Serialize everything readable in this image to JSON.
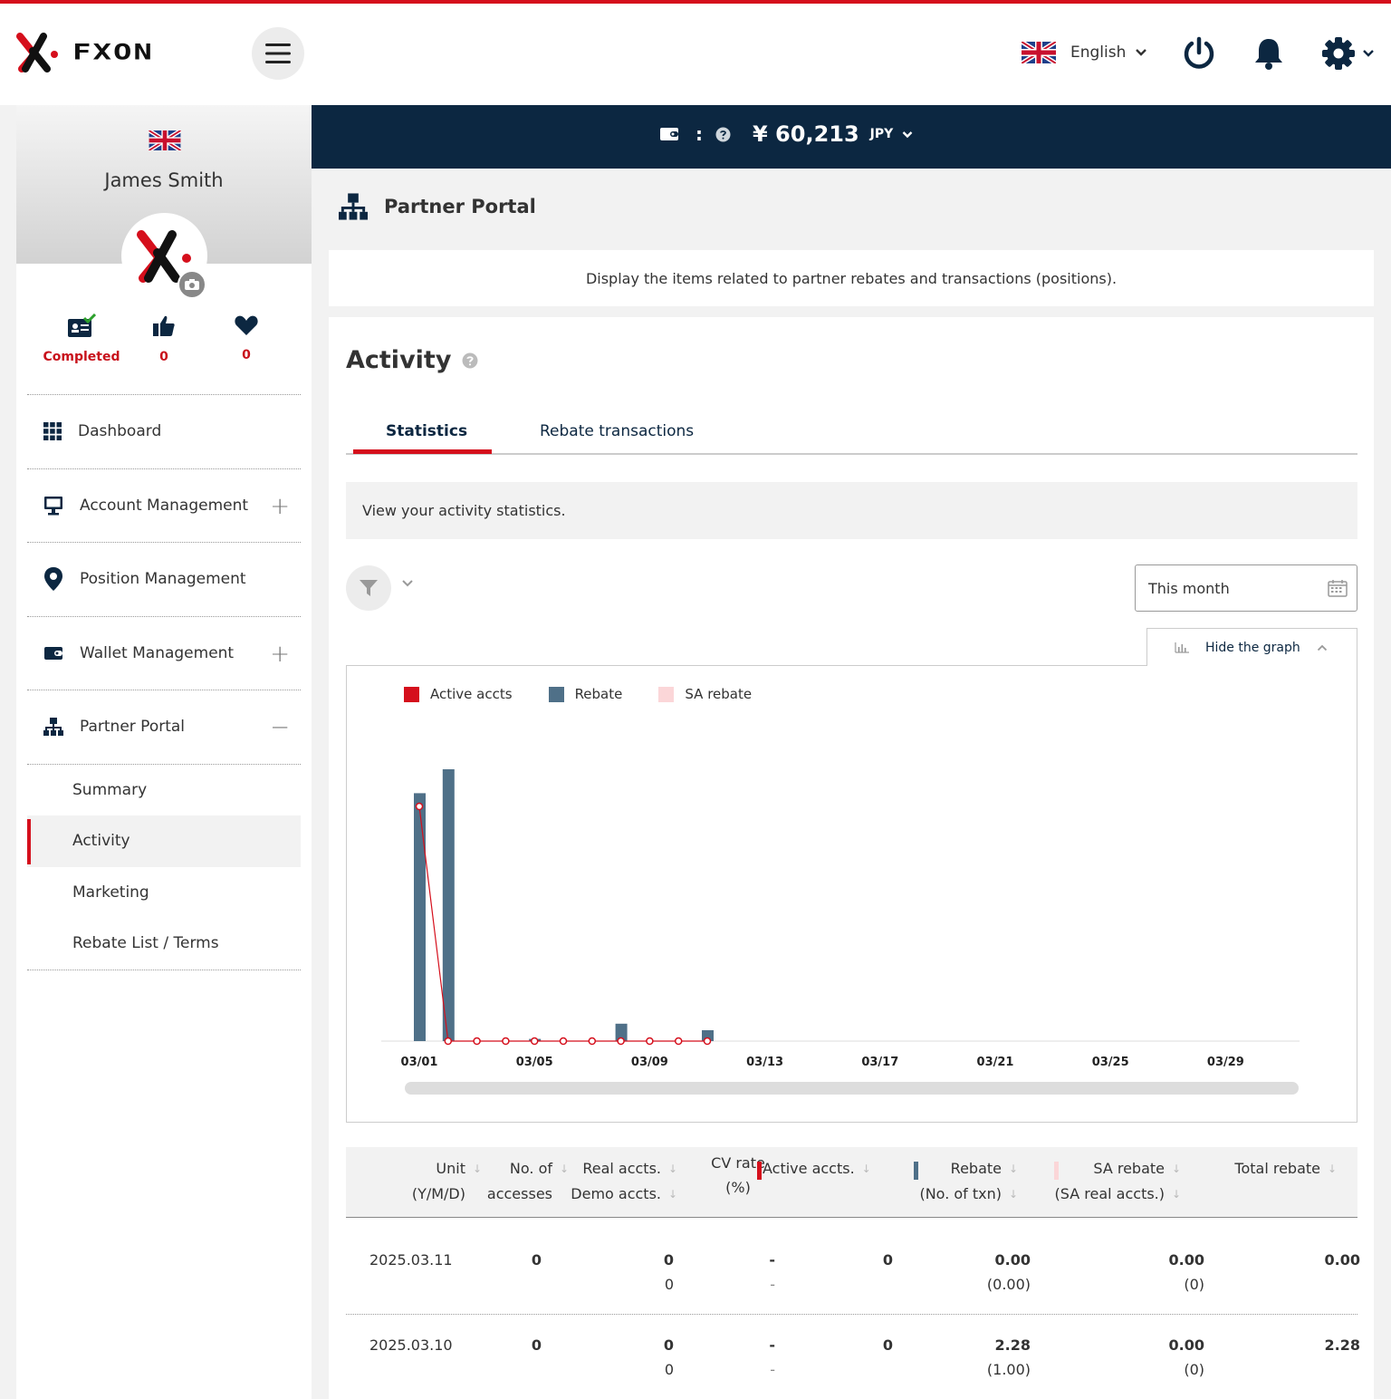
{
  "header": {
    "logo_text": "FXON",
    "language": "English"
  },
  "sidebar": {
    "user_name": "James Smith",
    "stats": [
      {
        "icon": "id-card-check-icon",
        "value": "Completed"
      },
      {
        "icon": "thumbs-up-icon",
        "value": "0"
      },
      {
        "icon": "heart-icon",
        "value": "0"
      }
    ],
    "menu": {
      "dashboard": "Dashboard",
      "account": "Account Management",
      "position": "Position Management",
      "wallet": "Wallet Management",
      "partner": "Partner Portal"
    },
    "submenu": {
      "summary": "Summary",
      "activity": "Activity",
      "marketing": "Marketing",
      "rebate": "Rebate List / Terms"
    }
  },
  "wallet": {
    "separator": ":",
    "amount": "¥ 60,213",
    "currency": "JPY"
  },
  "page": {
    "title": "Partner Portal",
    "description": "Display the items related to partner rebates and transactions (positions).",
    "section_title": "Activity",
    "tabs": {
      "statistics": "Statistics",
      "rebate_transactions": "Rebate transactions"
    },
    "info": "View your activity statistics.",
    "period": "This month",
    "hide_graph": "Hide the graph"
  },
  "colors": {
    "accent": "#d50f1c",
    "navy": "#0c2741",
    "rebate": "#4f7088",
    "sa_rebate": "#fbd6d8"
  },
  "chart_data": {
    "type": "bar",
    "legend_position": "top-left",
    "series": [
      {
        "name": "Active accts",
        "type": "line",
        "color": "#d50f1c",
        "values": [
          1,
          0,
          0,
          0,
          0,
          0,
          0,
          0,
          0,
          0,
          0
        ]
      },
      {
        "name": "Rebate",
        "type": "bar",
        "color": "#4f7088",
        "values": [
          2.28,
          2.5,
          0,
          0,
          0.02,
          0,
          0,
          0.16,
          0,
          0,
          0.1
        ]
      },
      {
        "name": "SA rebate",
        "type": "bar",
        "color": "#fbd6d8",
        "values": [
          0,
          0,
          0,
          0,
          0,
          0,
          0,
          0,
          0,
          0,
          0
        ]
      }
    ],
    "x_tick_labels": [
      "03/01",
      "03/05",
      "03/09",
      "03/13",
      "03/17",
      "03/21",
      "03/25",
      "03/29"
    ]
  },
  "table": {
    "headers": {
      "unit": [
        "Unit",
        "(Y/M/D)"
      ],
      "access": [
        "No. of",
        "accesses"
      ],
      "real": [
        "Real accts.",
        "Demo accts."
      ],
      "cv": [
        "CV rate",
        "(%)"
      ],
      "active": "Active accts.",
      "rebate": [
        "Rebate",
        "(No. of txn)"
      ],
      "sa": [
        "SA rebate",
        "(SA real accts.)"
      ],
      "total": "Total rebate"
    },
    "rows": [
      {
        "date": "2025.03.11",
        "access": "0",
        "real": "0",
        "demo": "0",
        "cv": "-",
        "cv2": "-",
        "active": "0",
        "rebate": "0.00",
        "txn": "(0.00)",
        "sa": "0.00",
        "sa_real": "(0)",
        "total": "0.00"
      },
      {
        "date": "2025.03.10",
        "access": "0",
        "real": "0",
        "demo": "0",
        "cv": "-",
        "cv2": "-",
        "active": "0",
        "rebate": "2.28",
        "txn": "(1.00)",
        "sa": "0.00",
        "sa_real": "(0)",
        "total": "2.28"
      }
    ]
  }
}
